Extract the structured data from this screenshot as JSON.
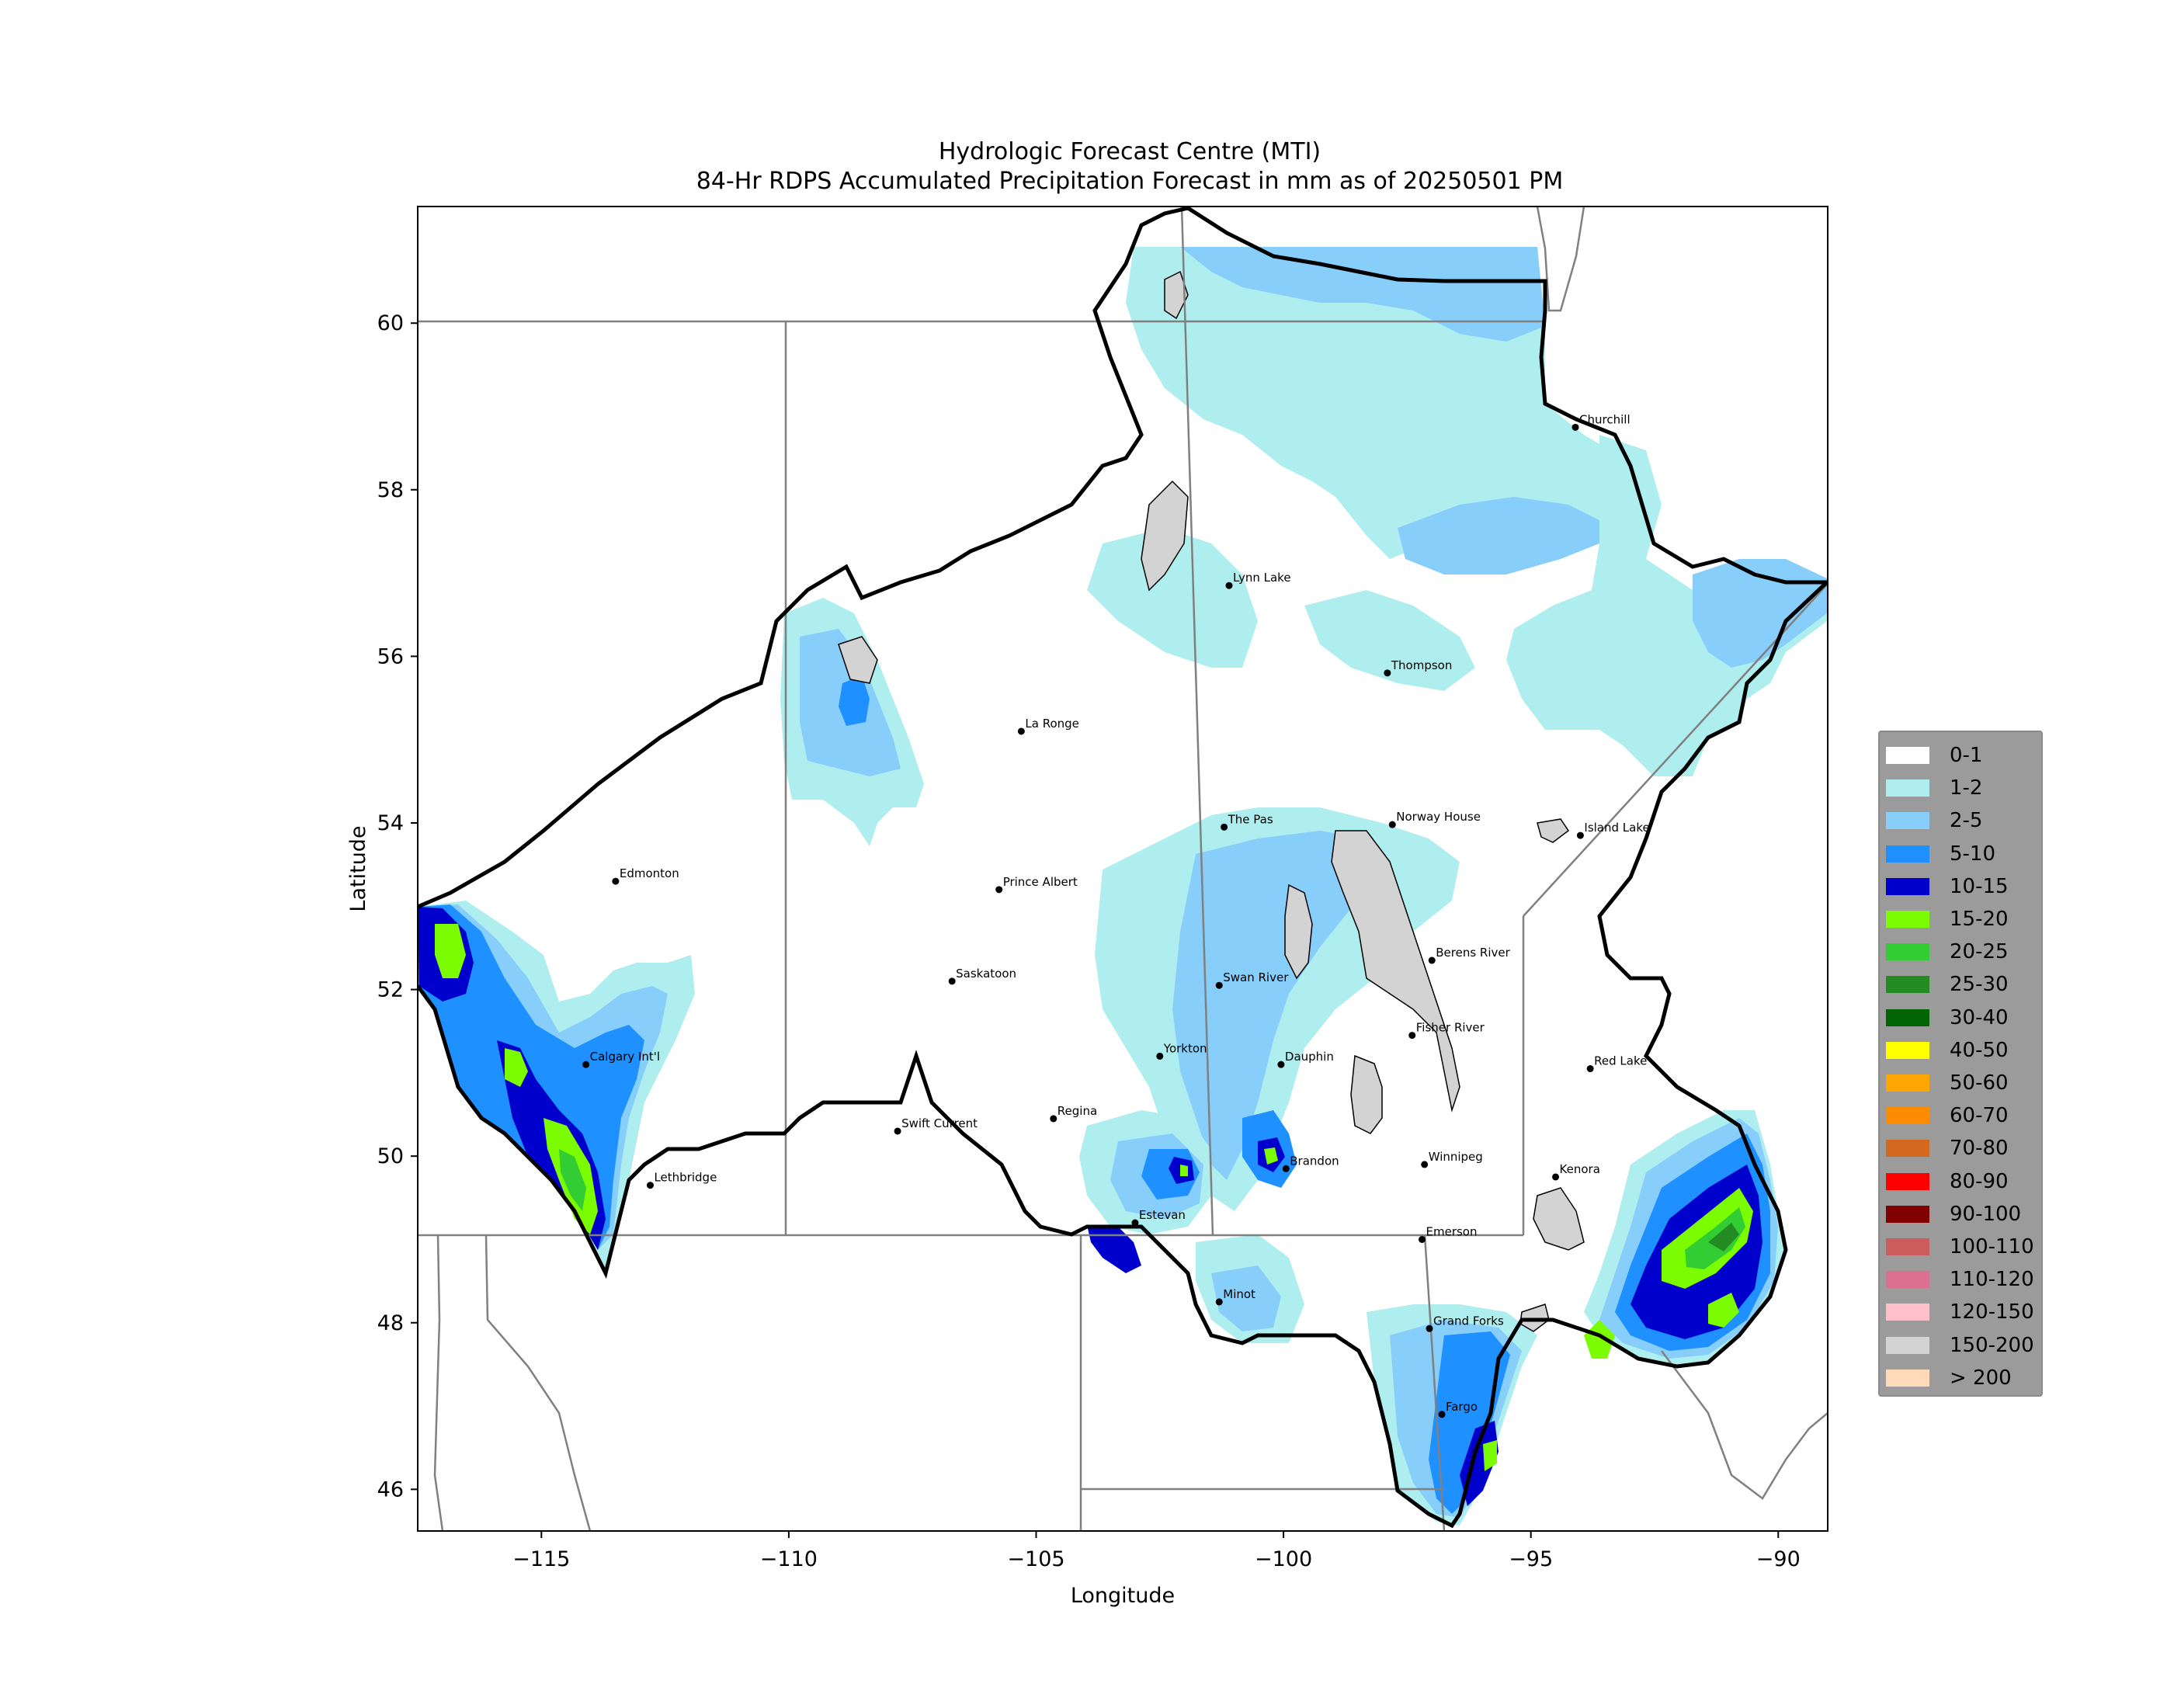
{
  "chart_data": {
    "type": "heatmap",
    "title": "Hydrologic Forecast Centre (MTI)",
    "subtitle": "84-Hr RDPS Accumulated Precipitation Forecast in mm as of 20250501 PM",
    "xlabel": "Longitude",
    "ylabel": "Latitude",
    "xlim": [
      -117.5,
      -89
    ],
    "ylim": [
      45.5,
      61.4
    ],
    "x_ticks": [
      -115,
      -110,
      -105,
      -100,
      -95,
      -90
    ],
    "x_tick_labels": [
      "−115",
      "−110",
      "−105",
      "−100",
      "−95",
      "−90"
    ],
    "y_ticks": [
      46,
      48,
      50,
      52,
      54,
      56,
      58,
      60
    ],
    "y_tick_labels": [
      "46",
      "48",
      "50",
      "52",
      "54",
      "56",
      "58",
      "60"
    ],
    "legend_position": "right",
    "legend": [
      {
        "label": "0-1",
        "color": "#ffffff"
      },
      {
        "label": "1-2",
        "color": "#afeeee"
      },
      {
        "label": "2-5",
        "color": "#87cefa"
      },
      {
        "label": "5-10",
        "color": "#1e90ff"
      },
      {
        "label": "10-15",
        "color": "#0000cd"
      },
      {
        "label": "15-20",
        "color": "#7cfc00"
      },
      {
        "label": "20-25",
        "color": "#32cd32"
      },
      {
        "label": "25-30",
        "color": "#228b22"
      },
      {
        "label": "30-40",
        "color": "#006400"
      },
      {
        "label": "40-50",
        "color": "#ffff00"
      },
      {
        "label": "50-60",
        "color": "#ffa500"
      },
      {
        "label": "60-70",
        "color": "#ff8c00"
      },
      {
        "label": "70-80",
        "color": "#d2691e"
      },
      {
        "label": "80-90",
        "color": "#ff0000"
      },
      {
        "label": "90-100",
        "color": "#800000"
      },
      {
        "label": "100-110",
        "color": "#cd5c5c"
      },
      {
        "label": "110-120",
        "color": "#db7093"
      },
      {
        "label": "120-150",
        "color": "#ffc0cb"
      },
      {
        "label": "150-200",
        "color": "#d3d3d3"
      },
      {
        "label": "> 200",
        "color": "#ffdab9"
      }
    ],
    "cities": [
      {
        "name": "Churchill",
        "lon": -94.1,
        "lat": 58.75
      },
      {
        "name": "Lynn Lake",
        "lon": -101.1,
        "lat": 56.85
      },
      {
        "name": "Thompson",
        "lon": -97.9,
        "lat": 55.8
      },
      {
        "name": "La Ronge",
        "lon": -105.3,
        "lat": 55.1
      },
      {
        "name": "The Pas",
        "lon": -101.2,
        "lat": 53.95
      },
      {
        "name": "Norway House",
        "lon": -97.8,
        "lat": 53.98
      },
      {
        "name": "Island Lake",
        "lon": -94.0,
        "lat": 53.85
      },
      {
        "name": "Edmonton",
        "lon": -113.5,
        "lat": 53.3
      },
      {
        "name": "Prince Albert",
        "lon": -105.75,
        "lat": 53.2
      },
      {
        "name": "Berens River",
        "lon": -97.0,
        "lat": 52.35
      },
      {
        "name": "Saskatoon",
        "lon": -106.7,
        "lat": 52.1
      },
      {
        "name": "Swan River",
        "lon": -101.3,
        "lat": 52.05
      },
      {
        "name": "Fisher River",
        "lon": -97.4,
        "lat": 51.45
      },
      {
        "name": "Calgary Int'l",
        "lon": -114.1,
        "lat": 51.1
      },
      {
        "name": "Yorkton",
        "lon": -102.5,
        "lat": 51.2
      },
      {
        "name": "Dauphin",
        "lon": -100.05,
        "lat": 51.1
      },
      {
        "name": "Red Lake",
        "lon": -93.8,
        "lat": 51.05
      },
      {
        "name": "Regina",
        "lon": -104.65,
        "lat": 50.45
      },
      {
        "name": "Swift Current",
        "lon": -107.8,
        "lat": 50.3
      },
      {
        "name": "Brandon",
        "lon": -99.95,
        "lat": 49.85
      },
      {
        "name": "Winnipeg",
        "lon": -97.15,
        "lat": 49.9
      },
      {
        "name": "Kenora",
        "lon": -94.5,
        "lat": 49.75
      },
      {
        "name": "Lethbridge",
        "lon": -112.8,
        "lat": 49.65
      },
      {
        "name": "Estevan",
        "lon": -103.0,
        "lat": 49.2
      },
      {
        "name": "Emerson",
        "lon": -97.2,
        "lat": 49.0
      },
      {
        "name": "Minot",
        "lon": -101.3,
        "lat": 48.25
      },
      {
        "name": "Grand Forks",
        "lon": -97.05,
        "lat": 47.93
      },
      {
        "name": "Fargo",
        "lon": -96.8,
        "lat": 46.9
      }
    ]
  }
}
